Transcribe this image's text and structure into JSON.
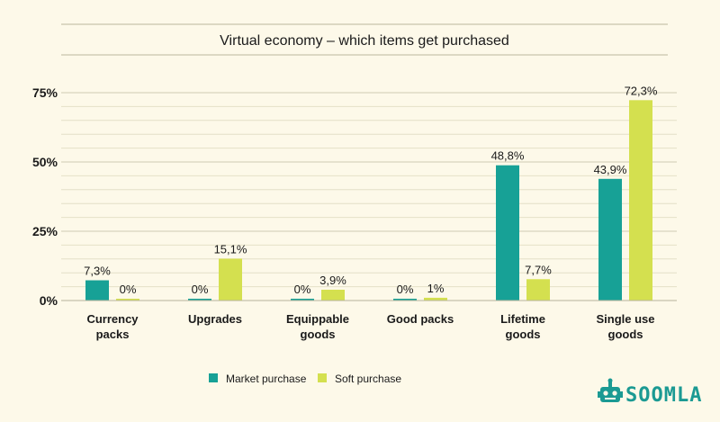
{
  "chart_data": {
    "type": "bar",
    "title": "Virtual economy – which items get purchased",
    "categories": [
      [
        "Currency",
        "packs"
      ],
      [
        "Upgrades"
      ],
      [
        "Equippable",
        "goods"
      ],
      [
        "Good packs"
      ],
      [
        "Lifetime",
        "goods"
      ],
      [
        "Single use",
        "goods"
      ]
    ],
    "series": [
      {
        "name": "Market purchase",
        "color": "#17a196",
        "values": [
          7.3,
          0,
          0,
          0,
          48.8,
          43.9
        ],
        "labels": [
          "7,3%",
          "0%",
          "0%",
          "0%",
          "48,8%",
          "43,9%"
        ]
      },
      {
        "name": "Soft purchase",
        "color": "#d4e04f",
        "values": [
          0,
          15.1,
          3.9,
          1,
          7.7,
          72.3
        ],
        "labels": [
          "0%",
          "15,1%",
          "3,9%",
          "1%",
          "7,7%",
          "72,3%"
        ]
      }
    ],
    "ylim": [
      0,
      80
    ],
    "yticks": [
      {
        "value": 0,
        "label": "0%"
      },
      {
        "value": 25,
        "label": "25%"
      },
      {
        "value": 50,
        "label": "50%"
      },
      {
        "value": 75,
        "label": "75%"
      }
    ],
    "minor_grid_step": 5,
    "grid": true,
    "legend_position": "bottom-center"
  },
  "brand": {
    "logo_text": "SOOMLA",
    "logo_icon": "robot-head-icon",
    "logo_color": "#1b9a93"
  }
}
